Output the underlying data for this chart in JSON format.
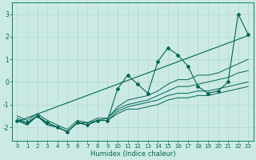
{
  "xlabel": "Humidex (Indice chaleur)",
  "xlim": [
    -0.5,
    23.5
  ],
  "ylim": [
    -2.6,
    3.5
  ],
  "yticks": [
    -2,
    -1,
    0,
    1,
    2,
    3
  ],
  "xticks": [
    0,
    1,
    2,
    3,
    4,
    5,
    6,
    7,
    8,
    9,
    10,
    11,
    12,
    13,
    14,
    15,
    16,
    17,
    18,
    19,
    20,
    21,
    22,
    23
  ],
  "bg_color": "#cceae4",
  "grid_color": "#b0d8d0",
  "line_color": "#006655",
  "figsize": [
    3.2,
    2.0
  ],
  "dpi": 100,
  "straight_line": [
    -1.75,
    2.05
  ],
  "series": [
    [
      -1.7,
      -1.9,
      -1.5,
      -1.9,
      -2.0,
      -2.2,
      -1.8,
      -1.9,
      -1.7,
      -1.7,
      -1.4,
      -1.2,
      -1.2,
      -1.1,
      -1.0,
      -0.8,
      -0.7,
      -0.7,
      -0.6,
      -0.6,
      -0.5,
      -0.4,
      -0.3,
      -0.2
    ],
    [
      -1.7,
      -1.9,
      -1.5,
      -1.9,
      -2.0,
      -2.2,
      -1.8,
      -1.9,
      -1.7,
      -1.7,
      -1.3,
      -1.1,
      -1.0,
      -0.9,
      -0.8,
      -0.6,
      -0.5,
      -0.5,
      -0.4,
      -0.4,
      -0.3,
      -0.2,
      -0.1,
      0.0
    ],
    [
      -1.6,
      -1.8,
      -1.5,
      -1.8,
      -2.0,
      -2.2,
      -1.8,
      -1.8,
      -1.7,
      -1.6,
      -1.2,
      -1.0,
      -0.9,
      -0.8,
      -0.6,
      -0.4,
      -0.2,
      -0.2,
      -0.1,
      -0.0,
      0.1,
      0.2,
      0.4,
      0.5
    ],
    [
      -1.5,
      -1.7,
      -1.4,
      -1.7,
      -1.9,
      -2.1,
      -1.7,
      -1.8,
      -1.6,
      -1.6,
      -1.1,
      -0.8,
      -0.7,
      -0.6,
      -0.4,
      -0.1,
      0.1,
      0.1,
      0.3,
      0.3,
      0.4,
      0.6,
      0.8,
      1.0
    ]
  ],
  "main_series": [
    -1.7,
    -1.8,
    -1.5,
    -1.8,
    -2.0,
    -2.2,
    -1.8,
    -1.9,
    -1.7,
    -1.7,
    -0.3,
    0.3,
    -0.1,
    -0.5,
    0.9,
    1.5,
    1.2,
    0.7,
    -0.2,
    -0.5,
    -0.4,
    0.0,
    3.0,
    2.1
  ]
}
